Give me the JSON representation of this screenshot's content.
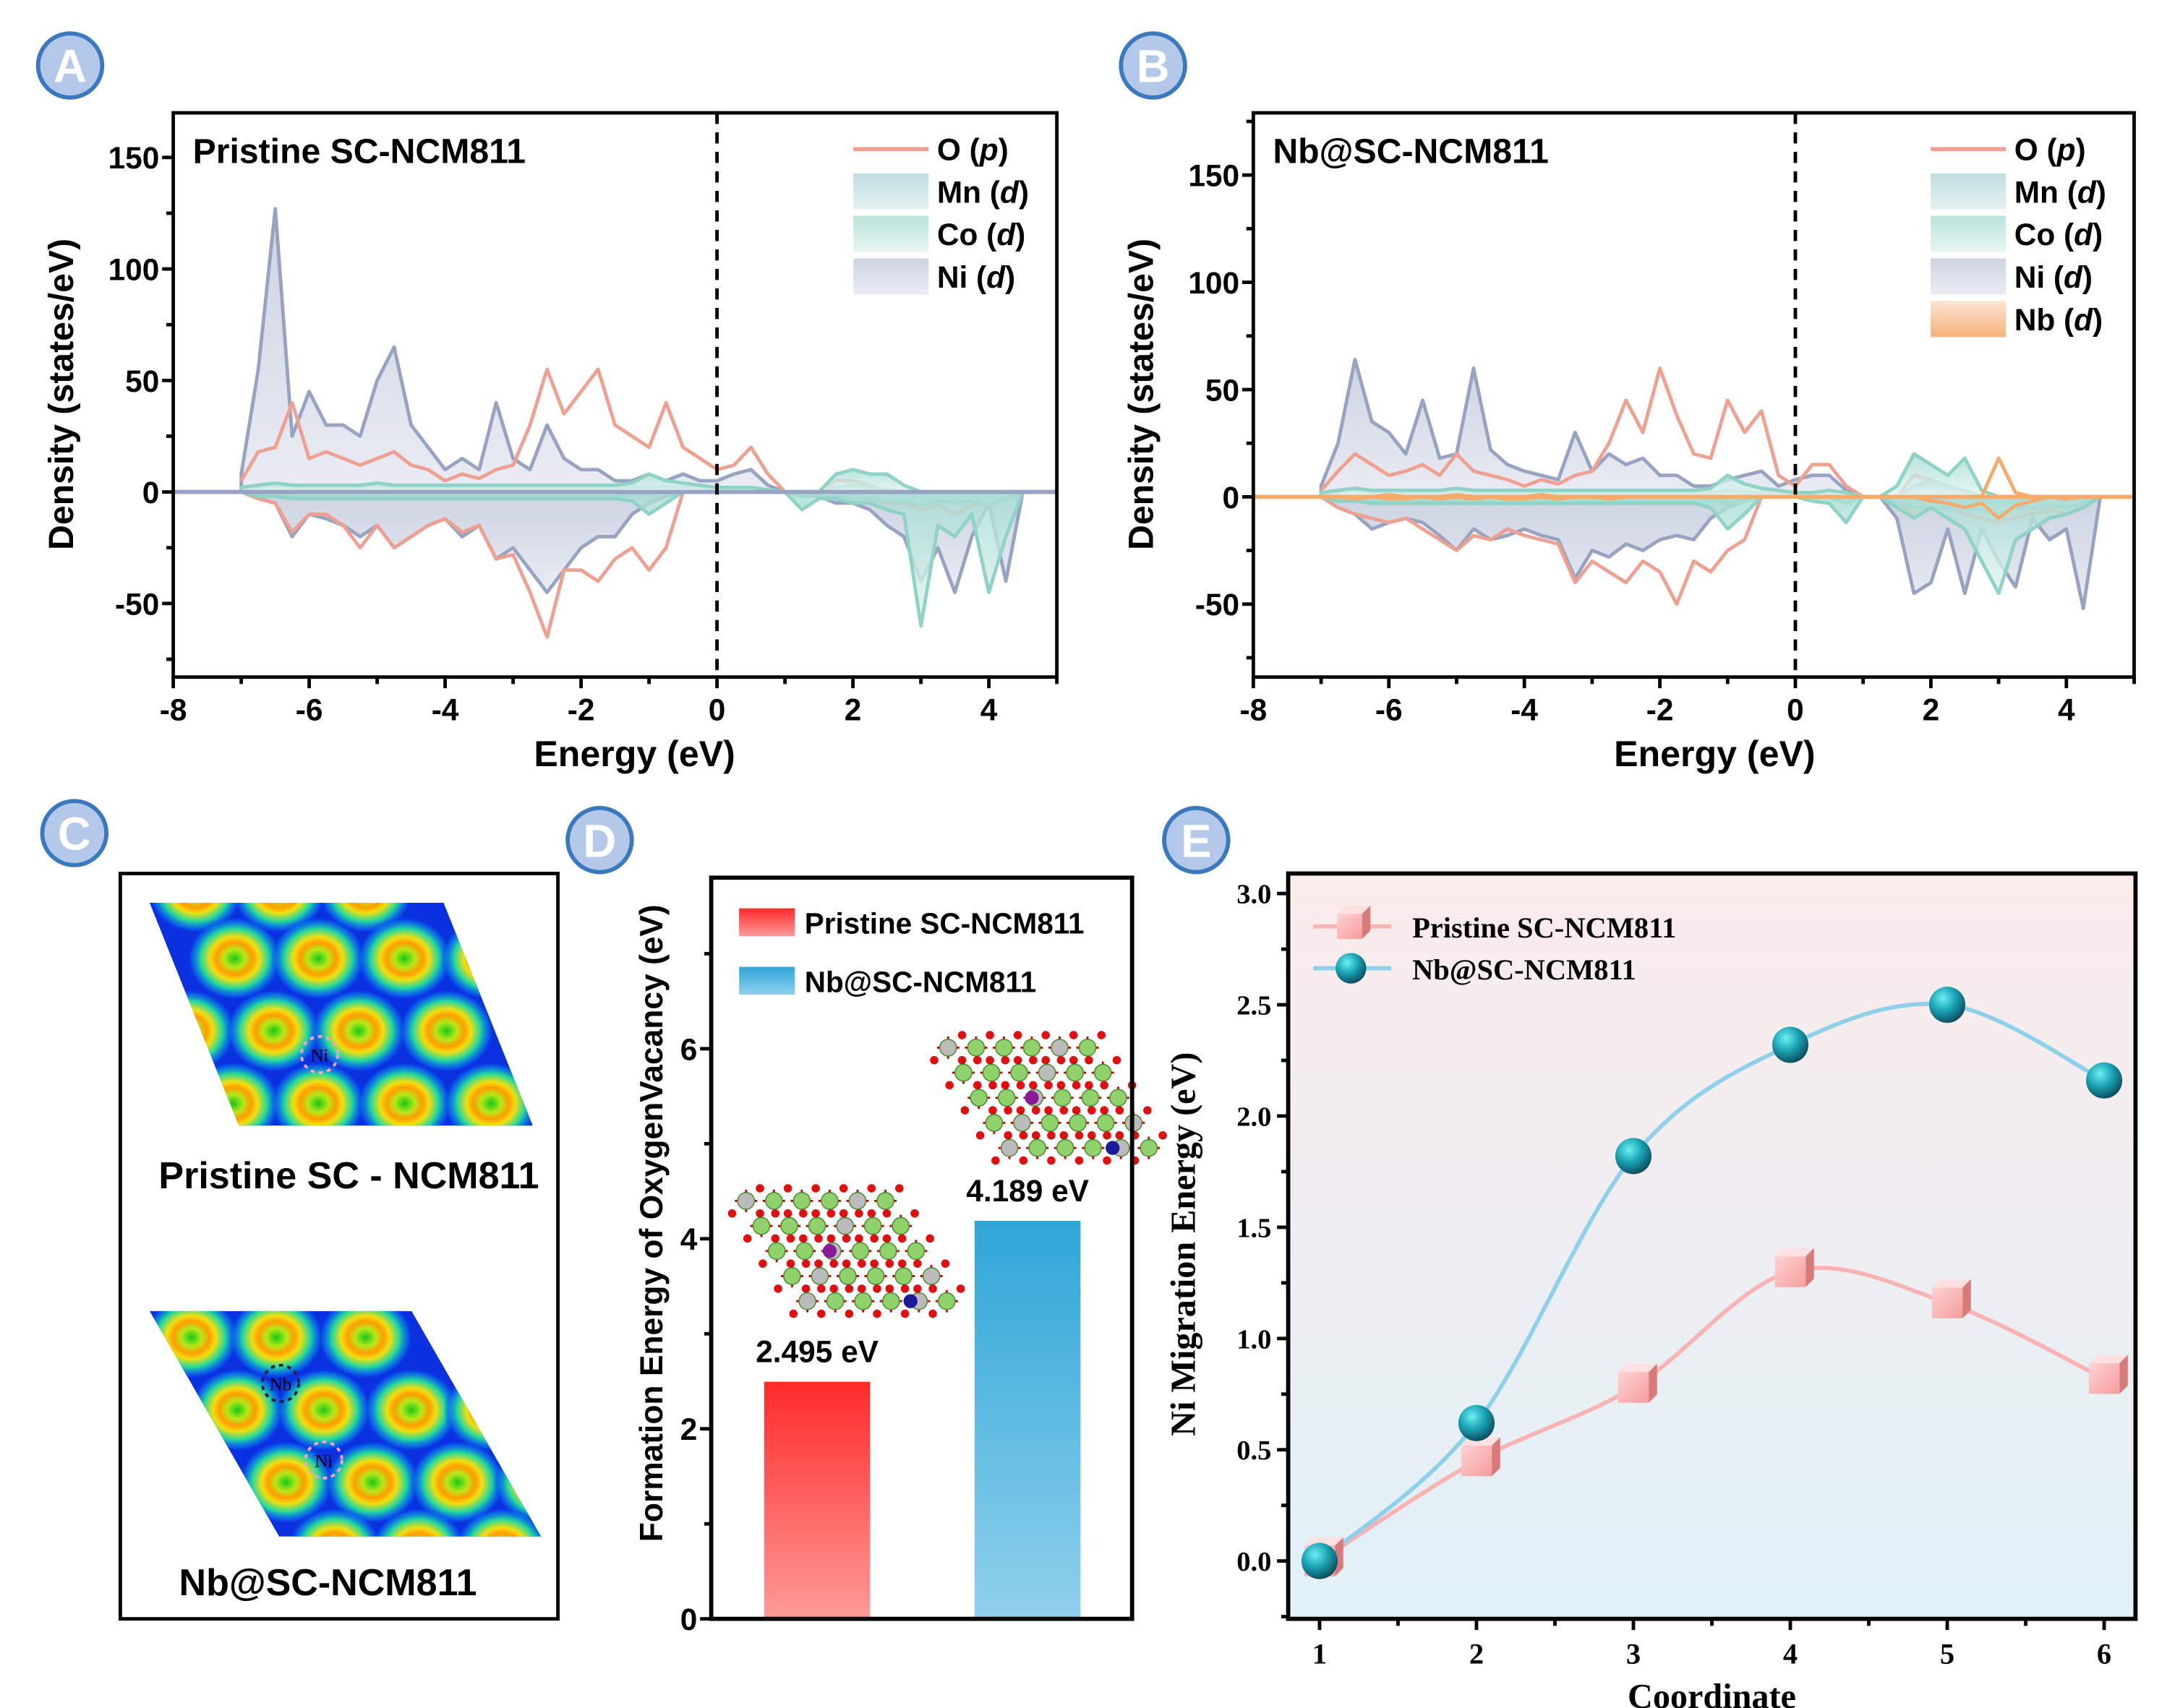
{
  "panel_labels": [
    "A",
    "B",
    "C",
    "D",
    "E"
  ],
  "colors": {
    "O": "#f0a090",
    "Mn": "#9cc9cc",
    "Co": "#8ed3c6",
    "Ni": "#97a3c0",
    "Nb": "#f5ab6c",
    "label_fill": "#b4c8ea",
    "label_stroke": "#3a78c0",
    "bar_red": "#ff2a2a",
    "bar_blue": "#2fa6d8",
    "series_pink": "#f9b3b3",
    "series_cyan": "#8fd0ea"
  },
  "chart_data": [
    {
      "id": "A",
      "type": "area",
      "title": "Pristine SC-NCM811",
      "xlabel": "Energy (eV)",
      "ylabel": "Density (states/eV)",
      "xlim": [
        -8,
        5
      ],
      "ylim": [
        -83,
        170
      ],
      "xticks": [
        -8,
        -6,
        -4,
        -2,
        0,
        2,
        4
      ],
      "yticks": [
        -50,
        0,
        50,
        100,
        150
      ],
      "fermi_level": 0,
      "legend_position": "top-right",
      "energy": [
        -7,
        -6.75,
        -6.5,
        -6.25,
        -6,
        -5.75,
        -5.5,
        -5.25,
        -5,
        -4.75,
        -4.5,
        -4.25,
        -4,
        -3.75,
        -3.5,
        -3.25,
        -3,
        -2.75,
        -2.5,
        -2.25,
        -2,
        -1.75,
        -1.5,
        -1.25,
        -1,
        -0.75,
        -0.5,
        -0.25,
        0,
        0.25,
        0.5,
        0.75,
        1,
        1.25,
        1.5,
        1.75,
        2,
        2.25,
        2.5,
        2.75,
        3,
        3.25,
        3.5,
        3.75,
        4,
        4.25,
        4.5
      ],
      "series": [
        {
          "name": "O",
          "orbital": "p",
          "style": "line",
          "up": [
            5,
            18,
            20,
            40,
            15,
            18,
            15,
            12,
            15,
            18,
            12,
            10,
            5,
            8,
            6,
            10,
            12,
            30,
            55,
            35,
            45,
            55,
            30,
            25,
            20,
            40,
            20,
            15,
            10,
            12,
            20,
            8,
            0,
            0,
            0,
            5,
            5,
            3,
            0,
            0,
            0,
            0,
            0,
            0,
            0,
            0,
            0
          ],
          "down": [
            0,
            -3,
            -5,
            -18,
            -10,
            -10,
            -15,
            -25,
            -15,
            -25,
            -20,
            -15,
            -12,
            -18,
            -15,
            -30,
            -28,
            -45,
            -65,
            -35,
            -35,
            -40,
            -30,
            -25,
            -35,
            -25,
            0,
            0,
            0,
            0,
            0,
            0,
            0,
            0,
            0,
            0,
            -2,
            -3,
            -5,
            -5,
            -8,
            -6,
            -10,
            -6,
            -5,
            -3,
            0
          ]
        },
        {
          "name": "Mn",
          "orbital": "d",
          "style": "area",
          "up": [
            1,
            2,
            3,
            2,
            2,
            2,
            2,
            2,
            3,
            2,
            2,
            2,
            2,
            2,
            2,
            2,
            2,
            2,
            2,
            2,
            2,
            2,
            2,
            2,
            2,
            2,
            2,
            2,
            1,
            1,
            1,
            0,
            0,
            0,
            0,
            2,
            3,
            2,
            1,
            0,
            0,
            0,
            0,
            0,
            0,
            0,
            0
          ],
          "down": [
            0,
            -2,
            -2,
            -2,
            -2,
            -2,
            -2,
            -2,
            -2,
            -2,
            -2,
            -2,
            -2,
            -2,
            -2,
            -2,
            -2,
            -2,
            -2,
            -2,
            -2,
            -2,
            -2,
            -1,
            -1,
            0,
            0,
            0,
            0,
            0,
            0,
            0,
            0,
            -2,
            -2,
            -2,
            -3,
            -3,
            -4,
            -4,
            -6,
            -4,
            -5,
            -4,
            -6,
            -3,
            0
          ]
        },
        {
          "name": "Co",
          "orbital": "d",
          "style": "area",
          "up": [
            2,
            3,
            4,
            3,
            3,
            3,
            3,
            3,
            4,
            3,
            3,
            3,
            3,
            3,
            3,
            3,
            3,
            3,
            3,
            3,
            3,
            3,
            3,
            4,
            8,
            5,
            4,
            3,
            2,
            2,
            2,
            1,
            0,
            0,
            0,
            8,
            10,
            8,
            8,
            3,
            0,
            0,
            0,
            0,
            0,
            0,
            0
          ],
          "down": [
            0,
            -2,
            -2,
            -3,
            -3,
            -3,
            -3,
            -3,
            -3,
            -3,
            -3,
            -3,
            -3,
            -3,
            -3,
            -3,
            -3,
            -3,
            -3,
            -3,
            -3,
            -3,
            -3,
            -4,
            -10,
            -5,
            0,
            0,
            0,
            0,
            0,
            0,
            0,
            -8,
            -3,
            -3,
            -5,
            -5,
            -8,
            -10,
            -60,
            -15,
            -20,
            -10,
            -45,
            -20,
            0
          ]
        },
        {
          "name": "Ni",
          "orbital": "d",
          "style": "area",
          "up": [
            8,
            55,
            127,
            25,
            45,
            30,
            30,
            25,
            50,
            65,
            30,
            20,
            10,
            15,
            10,
            40,
            15,
            10,
            30,
            15,
            10,
            10,
            5,
            5,
            8,
            5,
            8,
            5,
            5,
            8,
            10,
            3,
            0,
            0,
            0,
            2,
            3,
            1,
            0,
            0,
            0,
            0,
            0,
            0,
            0,
            0,
            0
          ],
          "down": [
            0,
            -3,
            -5,
            -20,
            -10,
            -12,
            -15,
            -20,
            -15,
            -25,
            -20,
            -15,
            -12,
            -20,
            -15,
            -30,
            -25,
            -35,
            -45,
            -35,
            -25,
            -20,
            -20,
            -10,
            -5,
            -2,
            0,
            0,
            0,
            0,
            0,
            0,
            0,
            0,
            -2,
            -5,
            -5,
            -8,
            -15,
            -20,
            -40,
            -25,
            -45,
            -20,
            -5,
            -40,
            0
          ]
        }
      ]
    },
    {
      "id": "B",
      "type": "area",
      "title": "Nb@SC-NCM811",
      "xlabel": "Energy (eV)",
      "ylabel": "Density (states/eV)",
      "xlim": [
        -8,
        5
      ],
      "ylim": [
        -84,
        179
      ],
      "xticks": [
        -8,
        -6,
        -4,
        -2,
        0,
        2,
        4
      ],
      "yticks": [
        -50,
        0,
        50,
        100,
        150
      ],
      "fermi_level": 0,
      "legend_position": "top-right",
      "energy": [
        -7,
        -6.75,
        -6.5,
        -6.25,
        -6,
        -5.75,
        -5.5,
        -5.25,
        -5,
        -4.75,
        -4.5,
        -4.25,
        -4,
        -3.75,
        -3.5,
        -3.25,
        -3,
        -2.75,
        -2.5,
        -2.25,
        -2,
        -1.75,
        -1.5,
        -1.25,
        -1,
        -0.75,
        -0.5,
        -0.25,
        0,
        0.25,
        0.5,
        0.75,
        1,
        1.25,
        1.5,
        1.75,
        2,
        2.25,
        2.5,
        2.75,
        3,
        3.25,
        3.5,
        3.75,
        4,
        4.25,
        4.5
      ],
      "series": [
        {
          "name": "O",
          "orbital": "p",
          "style": "line",
          "up": [
            3,
            12,
            20,
            15,
            10,
            12,
            15,
            10,
            20,
            12,
            10,
            8,
            5,
            8,
            6,
            10,
            12,
            25,
            45,
            30,
            60,
            38,
            20,
            18,
            45,
            30,
            40,
            10,
            5,
            15,
            15,
            5,
            0,
            0,
            0,
            10,
            8,
            5,
            3,
            0,
            0,
            0,
            0,
            0,
            0,
            0,
            0
          ],
          "down": [
            0,
            -5,
            -8,
            -10,
            -12,
            -10,
            -15,
            -20,
            -25,
            -18,
            -20,
            -15,
            -18,
            -20,
            -22,
            -40,
            -30,
            -35,
            -40,
            -30,
            -35,
            -50,
            -30,
            -35,
            -25,
            -20,
            0,
            0,
            0,
            0,
            0,
            0,
            0,
            0,
            -3,
            -8,
            -5,
            -5,
            -8,
            -10,
            -12,
            -10,
            -8,
            -6,
            -8,
            -5,
            0
          ]
        },
        {
          "name": "Mn",
          "orbital": "d",
          "style": "area",
          "up": [
            1,
            2,
            3,
            2,
            2,
            2,
            2,
            2,
            3,
            2,
            2,
            2,
            2,
            2,
            2,
            2,
            2,
            2,
            2,
            2,
            2,
            2,
            2,
            2,
            3,
            2,
            2,
            2,
            1,
            1,
            1,
            0,
            0,
            0,
            0,
            5,
            8,
            5,
            3,
            0,
            0,
            0,
            0,
            0,
            0,
            0,
            0
          ],
          "down": [
            0,
            -2,
            -2,
            -2,
            -2,
            -2,
            -2,
            -2,
            -2,
            -2,
            -2,
            -2,
            -2,
            -2,
            -2,
            -2,
            -2,
            -2,
            -2,
            -2,
            -2,
            -2,
            -2,
            -2,
            -3,
            -2,
            0,
            0,
            0,
            0,
            0,
            -3,
            0,
            0,
            -3,
            -5,
            -5,
            -5,
            -6,
            -6,
            -8,
            -5,
            -5,
            -4,
            -5,
            -3,
            0
          ]
        },
        {
          "name": "Co",
          "orbital": "d",
          "style": "area",
          "up": [
            2,
            3,
            4,
            3,
            3,
            3,
            3,
            3,
            4,
            3,
            3,
            3,
            3,
            3,
            3,
            3,
            3,
            3,
            3,
            3,
            3,
            3,
            3,
            4,
            10,
            6,
            4,
            3,
            2,
            2,
            3,
            2,
            0,
            0,
            5,
            20,
            15,
            10,
            18,
            3,
            0,
            0,
            0,
            0,
            0,
            0,
            0
          ],
          "down": [
            0,
            -2,
            -2,
            -3,
            -3,
            -3,
            -3,
            -3,
            -3,
            -3,
            -3,
            -3,
            -3,
            -3,
            -3,
            -3,
            -3,
            -3,
            -3,
            -3,
            -3,
            -3,
            -3,
            -5,
            -15,
            -8,
            0,
            0,
            0,
            -2,
            -3,
            -12,
            0,
            0,
            -5,
            -10,
            -5,
            -10,
            -15,
            -30,
            -45,
            -20,
            -15,
            -10,
            -8,
            -5,
            0
          ]
        },
        {
          "name": "Ni",
          "orbital": "d",
          "style": "area",
          "up": [
            5,
            25,
            64,
            35,
            30,
            20,
            45,
            18,
            20,
            60,
            22,
            15,
            12,
            10,
            8,
            30,
            12,
            20,
            15,
            18,
            10,
            10,
            5,
            5,
            8,
            10,
            12,
            5,
            8,
            10,
            10,
            3,
            0,
            0,
            0,
            5,
            6,
            4,
            2,
            0,
            0,
            0,
            0,
            0,
            0,
            0,
            0
          ],
          "down": [
            0,
            -5,
            -8,
            -15,
            -12,
            -10,
            -12,
            -18,
            -25,
            -15,
            -20,
            -18,
            -15,
            -18,
            -20,
            -38,
            -25,
            -28,
            -22,
            -25,
            -20,
            -18,
            -20,
            -10,
            -5,
            -2,
            0,
            0,
            0,
            0,
            0,
            0,
            0,
            0,
            -10,
            -45,
            -40,
            -15,
            -45,
            -15,
            -30,
            -42,
            -10,
            -20,
            -15,
            -52,
            0
          ]
        },
        {
          "name": "Nb",
          "orbital": "d",
          "style": "line",
          "up": [
            0,
            0,
            0,
            0,
            1,
            0,
            0,
            0,
            1,
            0,
            0,
            0,
            0,
            1,
            0,
            0,
            0,
            0,
            0,
            0,
            0,
            0,
            0,
            0,
            0,
            0,
            0,
            0,
            0,
            0,
            0,
            0,
            0,
            0,
            0,
            0,
            0,
            0,
            0,
            0,
            18,
            2,
            0,
            0,
            0,
            0,
            0
          ],
          "down": [
            0,
            0,
            -1,
            0,
            -1,
            -1,
            0,
            -1,
            0,
            -1,
            0,
            -1,
            -1,
            0,
            -1,
            0,
            0,
            -1,
            0,
            0,
            0,
            0,
            0,
            0,
            0,
            0,
            0,
            0,
            0,
            0,
            0,
            0,
            0,
            0,
            0,
            0,
            -2,
            -3,
            -5,
            -3,
            -10,
            -4,
            -2,
            0,
            -1,
            0,
            0
          ]
        }
      ]
    },
    {
      "id": "C",
      "type": "heatmap",
      "captions": [
        "Pristine SC - NCM811",
        "Nb@SC-NCM811"
      ],
      "site_labels_top": [
        "Ni"
      ],
      "site_labels_bottom": [
        "Nb",
        "Ni"
      ]
    },
    {
      "id": "D",
      "type": "bar",
      "ylabel": "Formation Energy of OxygenVacancy (eV)",
      "ylim": [
        0,
        7.8
      ],
      "yticks": [
        0,
        2,
        4,
        6
      ],
      "legend_position": "top-left",
      "series": [
        {
          "name": "Pristine SC-NCM811",
          "value": 2.495,
          "label": "2.495 eV"
        },
        {
          "name": "Nb@SC-NCM811",
          "value": 4.189,
          "label": "4.189 eV"
        }
      ]
    },
    {
      "id": "E",
      "type": "line",
      "xlabel": "Coordinate",
      "ylabel": "Ni Migration Energy (eV)",
      "xlim": [
        0.8,
        6.2
      ],
      "ylim": [
        -0.26,
        3.09
      ],
      "xticks": [
        1,
        2,
        3,
        4,
        5,
        6
      ],
      "yticks": [
        0.0,
        0.5,
        1.0,
        1.5,
        2.0,
        2.5,
        3.0
      ],
      "ytick_labels": [
        "0.0",
        "0.5",
        "1.0",
        "1.5",
        "2.0",
        "2.5",
        "3.0"
      ],
      "legend_position": "top-left",
      "x": [
        1,
        2,
        3,
        4,
        5,
        6
      ],
      "series": [
        {
          "name": "Pristine SC-NCM811",
          "marker": "cube",
          "values": [
            0.0,
            0.45,
            0.78,
            1.3,
            1.16,
            0.82
          ]
        },
        {
          "name": "Nb@SC-NCM811",
          "marker": "sphere",
          "values": [
            0.0,
            0.62,
            1.82,
            2.32,
            2.5,
            2.16
          ]
        }
      ]
    }
  ]
}
